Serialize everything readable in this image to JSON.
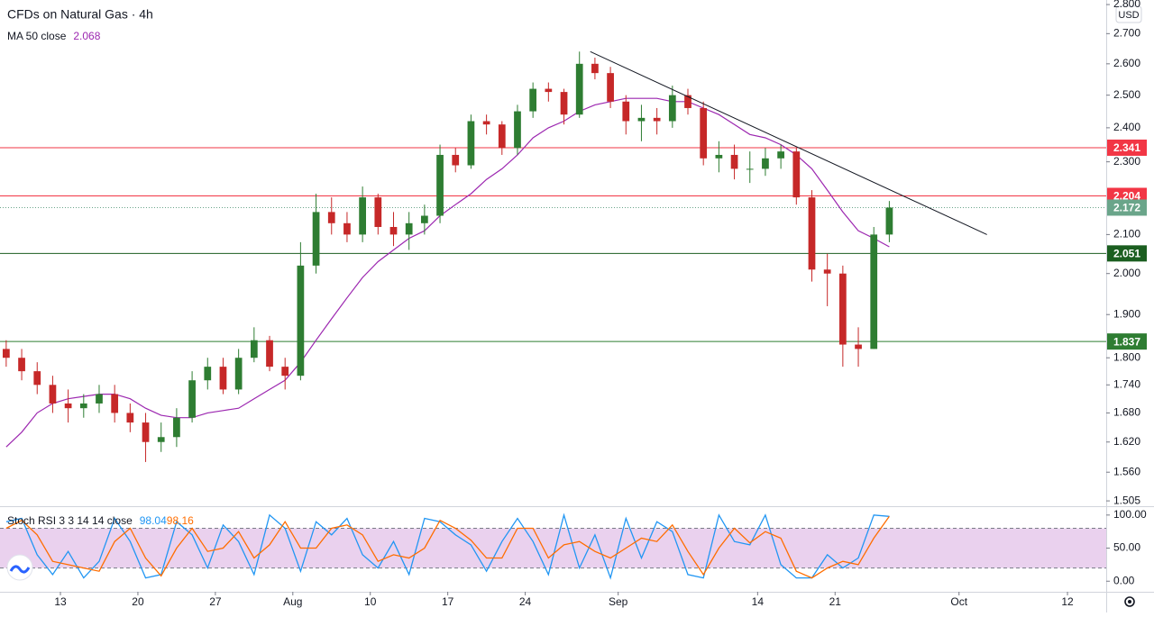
{
  "chart_data": {
    "type": "candlestick",
    "title": "CFDs on Natural Gas · 4h",
    "currency": "USD",
    "log_scale": true,
    "grid": false,
    "x": [
      -3.5,
      -2.5,
      -1.5,
      -0.5,
      0.5,
      1.5,
      2.5,
      3.5,
      4.5,
      5.5,
      6.5,
      7.5,
      8.5,
      9.5,
      10.5,
      11.5,
      12.5,
      13.5,
      14.5,
      15.5,
      16.5,
      17.5,
      18.5,
      19.5,
      20.5,
      21.5,
      22.5,
      23.5,
      24.5,
      25.5,
      26.5,
      27.5,
      28.5,
      29.5,
      30.5,
      31.5,
      32.5,
      33.5,
      34.5,
      35.5,
      36.5,
      37.5,
      38.5,
      39.5,
      40.5,
      41.5,
      42.5,
      43.5,
      44.5,
      45.5,
      46.5,
      47.5,
      48.5,
      49.5,
      50.5,
      51.5,
      52.5,
      53.5
    ],
    "xlim": [
      -3.9,
      67.5
    ],
    "xticks": [
      {
        "value": 0,
        "label": "13"
      },
      {
        "value": 5,
        "label": "20"
      },
      {
        "value": 10,
        "label": "27"
      },
      {
        "value": 15,
        "label": "Aug"
      },
      {
        "value": 20,
        "label": "10"
      },
      {
        "value": 25,
        "label": "17"
      },
      {
        "value": 30,
        "label": "24"
      },
      {
        "value": 36,
        "label": "Sep"
      },
      {
        "value": 45,
        "label": "14"
      },
      {
        "value": 50,
        "label": "21"
      },
      {
        "value": 58,
        "label": "Oct"
      },
      {
        "value": 65,
        "label": "12"
      }
    ],
    "ylim": [
      1.495,
      2.816
    ],
    "yticks": [
      {
        "value": 2.8,
        "label": "2.800"
      },
      {
        "value": 2.7,
        "label": "2.700"
      },
      {
        "value": 2.6,
        "label": "2.600"
      },
      {
        "value": 2.5,
        "label": "2.500"
      },
      {
        "value": 2.4,
        "label": "2.400"
      },
      {
        "value": 2.3,
        "label": "2.300"
      },
      {
        "value": 2.1,
        "label": "2.100"
      },
      {
        "value": 2.0,
        "label": "2.000"
      },
      {
        "value": 1.9,
        "label": "1.900"
      },
      {
        "value": 1.8,
        "label": "1.800"
      },
      {
        "value": 1.74,
        "label": "1.740"
      },
      {
        "value": 1.68,
        "label": "1.680"
      },
      {
        "value": 1.62,
        "label": "1.620"
      },
      {
        "value": 1.56,
        "label": "1.560"
      },
      {
        "value": 1.505,
        "label": "1.505"
      }
    ],
    "up_color": "#2e7d32",
    "down_color": "#c62828",
    "open": [
      1.82,
      1.8,
      1.77,
      1.74,
      1.7,
      1.69,
      1.7,
      1.72,
      1.68,
      1.66,
      1.62,
      1.63,
      1.67,
      1.75,
      1.78,
      1.73,
      1.8,
      1.84,
      1.78,
      1.76,
      2.02,
      2.16,
      2.13,
      2.1,
      2.2,
      2.12,
      2.1,
      2.13,
      2.15,
      2.32,
      2.29,
      2.42,
      2.41,
      2.34,
      2.45,
      2.52,
      2.51,
      2.44,
      2.6,
      2.57,
      2.48,
      2.42,
      2.43,
      2.42,
      2.5,
      2.46,
      2.31,
      2.32,
      2.28,
      2.28,
      2.31,
      2.33,
      2.2,
      2.01,
      2.0,
      1.83,
      1.82,
      2.1
    ],
    "high": [
      1.84,
      1.82,
      1.79,
      1.76,
      1.73,
      1.72,
      1.74,
      1.74,
      1.7,
      1.68,
      1.66,
      1.69,
      1.77,
      1.8,
      1.8,
      1.82,
      1.87,
      1.85,
      1.8,
      2.08,
      2.21,
      2.2,
      2.16,
      2.23,
      2.21,
      2.16,
      2.16,
      2.18,
      2.35,
      2.34,
      2.44,
      2.44,
      2.42,
      2.47,
      2.54,
      2.54,
      2.52,
      2.64,
      2.62,
      2.59,
      2.5,
      2.47,
      2.46,
      2.53,
      2.52,
      2.48,
      2.36,
      2.35,
      2.33,
      2.34,
      2.35,
      2.34,
      2.22,
      2.05,
      2.02,
      1.87,
      2.12,
      2.19
    ],
    "low": [
      1.78,
      1.75,
      1.72,
      1.68,
      1.66,
      1.67,
      1.68,
      1.66,
      1.64,
      1.58,
      1.6,
      1.61,
      1.66,
      1.73,
      1.72,
      1.72,
      1.79,
      1.77,
      1.73,
      1.75,
      2.0,
      2.1,
      2.08,
      2.08,
      2.1,
      2.07,
      2.06,
      2.1,
      2.13,
      2.27,
      2.28,
      2.38,
      2.32,
      2.32,
      2.43,
      2.48,
      2.41,
      2.43,
      2.55,
      2.46,
      2.38,
      2.36,
      2.38,
      2.4,
      2.44,
      2.29,
      2.27,
      2.25,
      2.24,
      2.26,
      2.28,
      2.18,
      1.98,
      1.92,
      1.78,
      1.78,
      1.82,
      2.08
    ],
    "close": [
      1.8,
      1.77,
      1.74,
      1.7,
      1.69,
      1.7,
      1.72,
      1.68,
      1.66,
      1.62,
      1.63,
      1.67,
      1.75,
      1.78,
      1.73,
      1.8,
      1.84,
      1.78,
      1.76,
      2.02,
      2.16,
      2.13,
      2.1,
      2.2,
      2.12,
      2.1,
      2.13,
      2.15,
      2.32,
      2.29,
      2.42,
      2.41,
      2.34,
      2.45,
      2.52,
      2.51,
      2.44,
      2.6,
      2.57,
      2.48,
      2.42,
      2.43,
      2.42,
      2.5,
      2.46,
      2.31,
      2.32,
      2.28,
      2.28,
      2.31,
      2.33,
      2.2,
      2.01,
      2.0,
      1.83,
      1.82,
      2.1,
      2.172
    ],
    "last_color": "#6aa58a",
    "ma": {
      "name": "MA 50 close",
      "color": "#9c27b0",
      "values": [
        1.61,
        1.64,
        1.68,
        1.7,
        1.71,
        1.715,
        1.72,
        1.72,
        1.71,
        1.69,
        1.675,
        1.67,
        1.67,
        1.68,
        1.685,
        1.69,
        1.71,
        1.73,
        1.75,
        1.79,
        1.84,
        1.89,
        1.94,
        1.99,
        2.03,
        2.06,
        2.09,
        2.11,
        2.15,
        2.18,
        2.21,
        2.25,
        2.28,
        2.32,
        2.37,
        2.4,
        2.42,
        2.45,
        2.47,
        2.48,
        2.49,
        2.49,
        2.49,
        2.48,
        2.48,
        2.46,
        2.44,
        2.41,
        2.38,
        2.37,
        2.35,
        2.32,
        2.28,
        2.22,
        2.16,
        2.11,
        2.09,
        2.068
      ]
    },
    "levels": [
      {
        "value": 2.341,
        "color": "#f23645"
      },
      {
        "value": 2.204,
        "color": "#f23645"
      },
      {
        "value": 2.051,
        "color": "#1b5e20"
      },
      {
        "value": 1.837,
        "color": "#2e7d32"
      }
    ],
    "trendline": {
      "x": [
        34.2,
        59.8
      ],
      "y": [
        2.64,
        2.1
      ],
      "color": "#131722"
    },
    "indicator": {
      "name": "Stoch RSI 3 3 14 14 close",
      "ylim": [
        -16,
        112
      ],
      "yticks": [
        {
          "value": 100,
          "label": "100.00"
        },
        {
          "value": 50,
          "label": "50.00"
        },
        {
          "value": 0,
          "label": "0.00"
        }
      ],
      "band": [
        20,
        80
      ],
      "band_color": "#e1bee7",
      "series": [
        {
          "color": "#2196f3",
          "values": [
            90,
            95,
            40,
            10,
            45,
            5,
            30,
            95,
            60,
            5,
            10,
            90,
            70,
            20,
            85,
            60,
            10,
            100,
            80,
            15,
            90,
            70,
            95,
            40,
            20,
            60,
            10,
            95,
            90,
            70,
            55,
            15,
            60,
            95,
            60,
            10,
            100,
            20,
            70,
            5,
            95,
            35,
            90,
            75,
            10,
            5,
            100,
            60,
            55,
            100,
            25,
            5,
            5,
            40,
            20,
            35,
            100,
            98.04
          ]
        },
        {
          "color": "#ff6d00",
          "values": [
            80,
            92,
            70,
            30,
            25,
            20,
            15,
            60,
            80,
            35,
            8,
            50,
            80,
            45,
            50,
            75,
            35,
            55,
            90,
            50,
            50,
            80,
            85,
            70,
            30,
            40,
            35,
            50,
            92,
            80,
            62,
            35,
            35,
            80,
            80,
            35,
            55,
            60,
            45,
            35,
            50,
            65,
            60,
            85,
            45,
            10,
            50,
            80,
            58,
            75,
            65,
            15,
            5,
            20,
            30,
            25,
            65,
            98.16
          ]
        }
      ]
    }
  }
}
